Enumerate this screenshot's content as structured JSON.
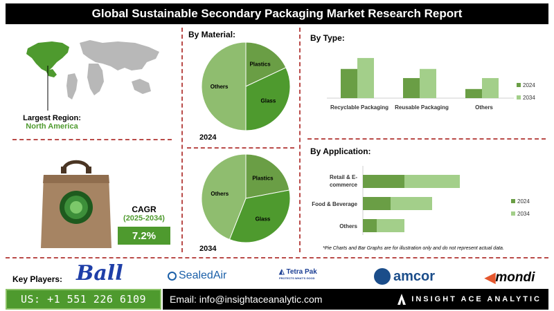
{
  "header": {
    "title": "Global Sustainable Secondary Packaging Market Research Report"
  },
  "region": {
    "label": "Largest Region:",
    "value": "North America"
  },
  "cagr": {
    "label": "CAGR",
    "period": "(2025-2034)",
    "value": "7.2%"
  },
  "note": "*Pie Charts and Bar Graphs are for illustration only and do not represent actual data.",
  "key_players": {
    "label": "Key Players:",
    "items": [
      "Ball",
      "SealedAir",
      "Tetra Pak",
      "amcor",
      "mondi"
    ],
    "tetra_tagline": "PROTECTS WHAT'S GOOD"
  },
  "footer": {
    "phone": "US: +1 551 226 6109",
    "email": "Email: info@insightaceanalytic.com",
    "brand": "INSIGHT ACE ANALYTIC"
  },
  "colors": {
    "dark_green": "#4e9a2e",
    "mid_green": "#6a9e45",
    "light_green": "#a3cf8a",
    "pie_light": "#8fbd6f",
    "divider": "#b94a48"
  },
  "chart_data": [
    {
      "type": "pie",
      "title": "By Material:",
      "year": "2024",
      "labels": [
        "Plastics",
        "Glass",
        "Others"
      ],
      "values": [
        18,
        32,
        50
      ]
    },
    {
      "type": "pie",
      "year": "2034",
      "labels": [
        "Plastics",
        "Glass",
        "Others"
      ],
      "values": [
        22,
        34,
        44
      ]
    },
    {
      "type": "bar",
      "title": "By Type:",
      "categories": [
        "Recyclable Packaging",
        "Reusable Packaging",
        "Others"
      ],
      "series": [
        {
          "name": "2024",
          "values": [
            3.2,
            2.2,
            1.0
          ]
        },
        {
          "name": "2034",
          "values": [
            4.4,
            3.2,
            2.2
          ]
        }
      ],
      "ylim": [
        0,
        5
      ],
      "legend": "right"
    },
    {
      "type": "bar",
      "orientation": "horizontal",
      "stacked": true,
      "title": "By Application:",
      "categories": [
        "Retail & E-commerce",
        "Food & Beverage",
        "Others"
      ],
      "series": [
        {
          "name": "2024",
          "values": [
            3.0,
            2.0,
            1.0
          ]
        },
        {
          "name": "2034",
          "values": [
            4.0,
            3.0,
            2.0
          ]
        }
      ],
      "xlim": [
        0,
        8
      ],
      "legend": "right"
    }
  ]
}
